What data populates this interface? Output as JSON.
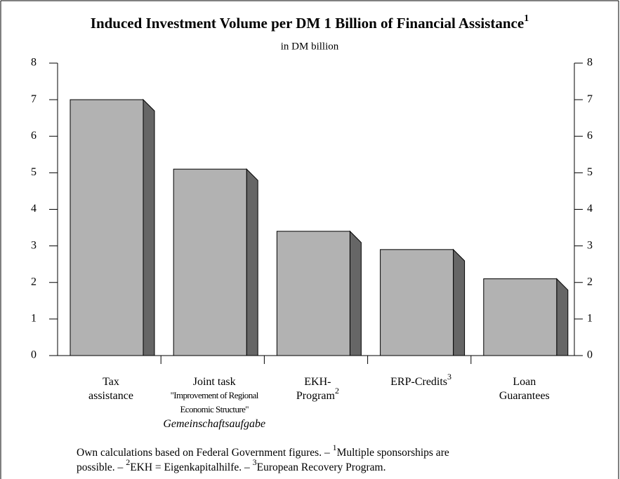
{
  "chart_data": {
    "type": "bar",
    "title": "Induced Investment Volume per DM 1 Billion of Financial Assistance",
    "title_note": "1",
    "subtitle": "in DM billion",
    "categories": [
      [
        "Tax",
        "assistance"
      ],
      [
        "Joint task",
        "\"Improvement of Regional",
        "Economic Structure\"",
        "Gemeinschaftsaufgabe"
      ],
      [
        "EKH-",
        "Program"
      ],
      [
        "ERP-Credits"
      ],
      [
        "Loan",
        "Guarantees"
      ]
    ],
    "category_notes": [
      null,
      null,
      "2",
      "3",
      null
    ],
    "values": [
      7.0,
      5.1,
      3.4,
      2.9,
      2.1
    ],
    "color": "#b2b2b2",
    "side_color": "#666666",
    "ylim": [
      0,
      8
    ],
    "yticks": [
      0,
      1,
      2,
      3,
      4,
      5,
      6,
      7,
      8
    ],
    "y2lim": [
      0,
      8
    ],
    "y2ticks": [
      0,
      1,
      2,
      3,
      4,
      5,
      6,
      7,
      8
    ],
    "grid": false,
    "footnote": [
      [
        {
          "text": "Own calculations based on Federal Government figures. – "
        },
        {
          "sup": "1"
        },
        {
          "text": "Multiple sponsorships are"
        }
      ],
      [
        {
          "text": "possible. – "
        },
        {
          "sup": "2"
        },
        {
          "text": "EKH = Eigenkapitalhilfe. – "
        },
        {
          "sup": "3"
        },
        {
          "text": "European Recovery Program."
        }
      ]
    ]
  }
}
